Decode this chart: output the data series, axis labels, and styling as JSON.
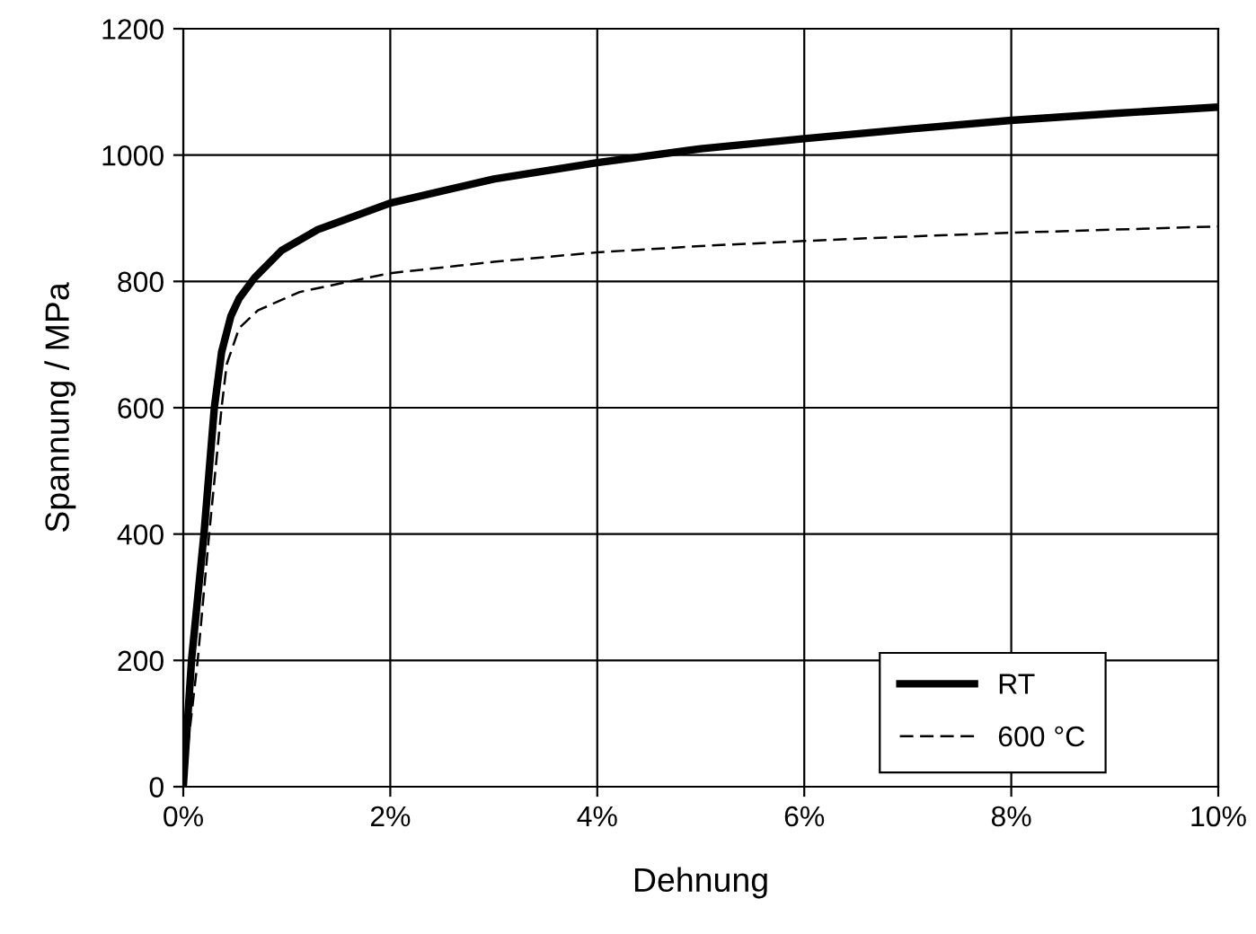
{
  "chart_data": {
    "type": "line",
    "xlabel": "Dehnung",
    "ylabel": "Spannung / MPa",
    "xlim": [
      0,
      10
    ],
    "xticks": [
      {
        "value": 0,
        "label": "0%"
      },
      {
        "value": 2,
        "label": "2%"
      },
      {
        "value": 4,
        "label": "4%"
      },
      {
        "value": 6,
        "label": "6%"
      },
      {
        "value": 8,
        "label": "8%"
      },
      {
        "value": 10,
        "label": "10%"
      }
    ],
    "ylim": [
      0,
      1200
    ],
    "yticks": [
      0,
      200,
      400,
      600,
      800,
      1000,
      1200
    ],
    "grid": true,
    "legend": "bottom right",
    "marker": "none",
    "series": [
      {
        "name": "RT",
        "color": "#000000",
        "line_style": "solid",
        "x": [
          0,
          0.08,
          0.2,
          0.3,
          0.37,
          0.46,
          0.54,
          0.69,
          0.95,
          1.3,
          2,
          3,
          4,
          5,
          6,
          7,
          8,
          9,
          10
        ],
        "values": [
          0,
          201,
          400,
          600,
          688,
          745,
          773,
          806,
          849,
          882,
          924,
          962,
          988,
          1010,
          1026,
          1041,
          1055,
          1066,
          1076
        ]
      },
      {
        "name": "600 °C",
        "color": "#000000",
        "line_style": "dashed",
        "x": [
          0,
          0.14,
          0.25,
          0.37,
          0.42,
          0.54,
          0.72,
          1.12,
          1.64,
          2,
          3,
          4,
          5,
          6,
          7,
          8,
          9,
          10
        ],
        "values": [
          0,
          201,
          400,
          600,
          669,
          726,
          754,
          783,
          801,
          813,
          831,
          846,
          856,
          864,
          871,
          877,
          882,
          887
        ]
      }
    ]
  }
}
